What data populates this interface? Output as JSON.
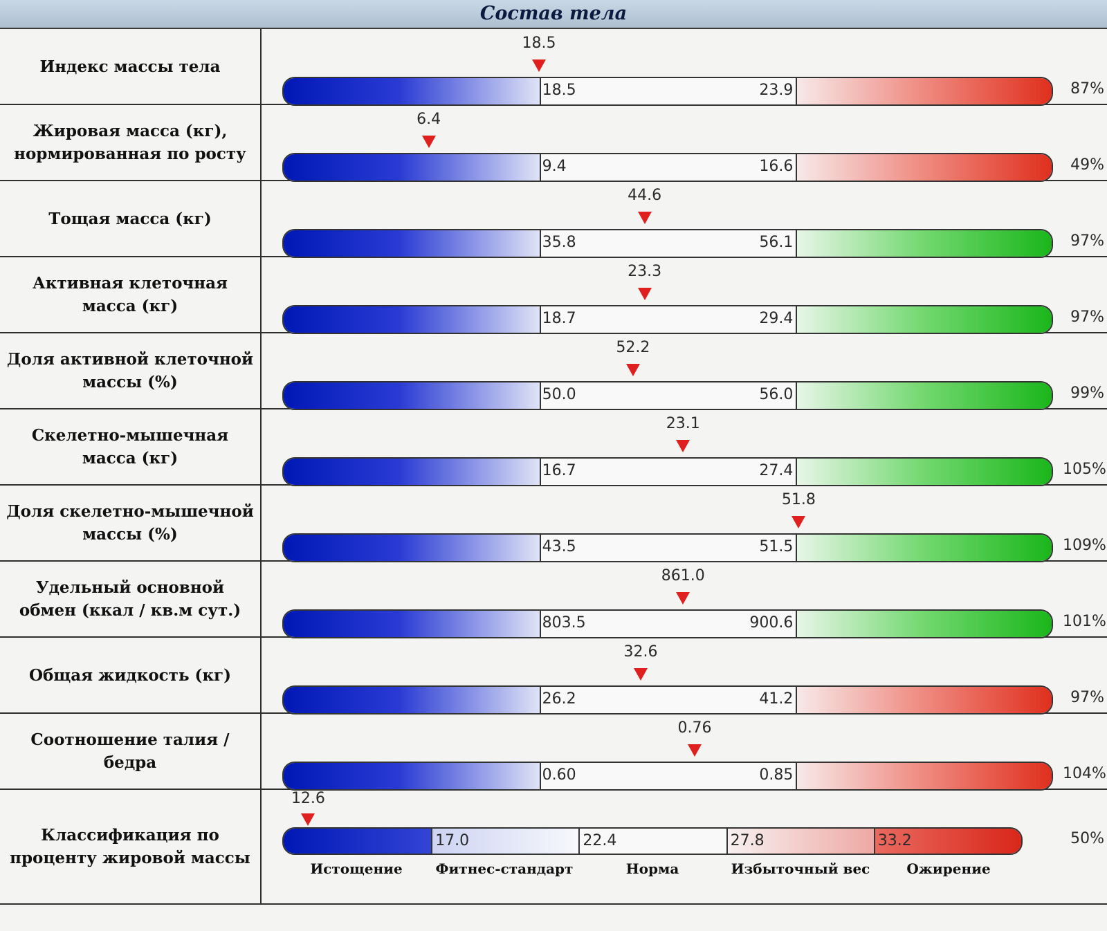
{
  "window_title": "Состав тела",
  "rows": [
    {
      "label": "Индекс массы тела",
      "value": "18.5",
      "pos": 0.333,
      "low": "18.5",
      "high": "23.9",
      "percent": "87%",
      "high_color": "red"
    },
    {
      "label": "Жировая масса (кг),\nнормированная по росту",
      "value": "6.4",
      "pos": 0.19,
      "low": "9.4",
      "high": "16.6",
      "percent": "49%",
      "high_color": "red"
    },
    {
      "label": "Тощая масса (кг)",
      "value": "44.6",
      "pos": 0.47,
      "low": "35.8",
      "high": "56.1",
      "percent": "97%",
      "high_color": "green"
    },
    {
      "label": "Активная клеточная\nмасса (кг)",
      "value": "23.3",
      "pos": 0.47,
      "low": "18.7",
      "high": "29.4",
      "percent": "97%",
      "high_color": "green"
    },
    {
      "label": "Доля активной клеточной\nмассы (%)",
      "value": "52.2",
      "pos": 0.455,
      "low": "50.0",
      "high": "56.0",
      "percent": "99%",
      "high_color": "green"
    },
    {
      "label": "Скелетно-мышечная\nмасса (кг)",
      "value": "23.1",
      "pos": 0.52,
      "low": "16.7",
      "high": "27.4",
      "percent": "105%",
      "high_color": "green"
    },
    {
      "label": "Доля скелетно-мышечной\nмассы (%)",
      "value": "51.8",
      "pos": 0.67,
      "low": "43.5",
      "high": "51.5",
      "percent": "109%",
      "high_color": "green"
    },
    {
      "label": "Удельный основной\nобмен (ккал / кв.м сут.)",
      "value": "861.0",
      "pos": 0.52,
      "low": "803.5",
      "high": "900.6",
      "percent": "101%",
      "high_color": "green"
    },
    {
      "label": "Общая жидкость (кг)",
      "value": "32.6",
      "pos": 0.465,
      "low": "26.2",
      "high": "41.2",
      "percent": "97%",
      "high_color": "red"
    },
    {
      "label": "Соотношение талия / бедра",
      "value": "0.76",
      "pos": 0.535,
      "low": "0.60",
      "high": "0.85",
      "percent": "104%",
      "high_color": "red"
    }
  ],
  "classification": {
    "label": "Классификация по\nпроценту жировой массы",
    "value": "12.6",
    "pos": 0.035,
    "percent": "50%",
    "ticks": [
      "17.0",
      "22.4",
      "27.8",
      "33.2"
    ],
    "categories": [
      "Истощение",
      "Фитнес-стандарт",
      "Норма",
      "Избыточный вес",
      "Ожирение"
    ]
  },
  "colors": {
    "low_zone": "#0018b5",
    "high_zone_red": "#e0301e",
    "high_zone_green": "#1bb61b",
    "marker": "#e01f1f"
  }
}
